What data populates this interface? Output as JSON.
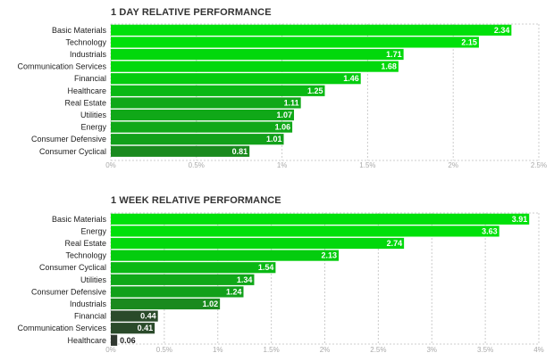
{
  "chart_data": [
    {
      "type": "bar",
      "orientation": "horizontal",
      "title": "1 DAY RELATIVE PERFORMANCE",
      "categories": [
        "Basic Materials",
        "Technology",
        "Industrials",
        "Communication Services",
        "Financial",
        "Healthcare",
        "Real Estate",
        "Utilities",
        "Energy",
        "Consumer Defensive",
        "Consumer Cyclical"
      ],
      "values": [
        2.34,
        2.15,
        1.71,
        1.68,
        1.46,
        1.25,
        1.11,
        1.07,
        1.06,
        1.01,
        0.81
      ],
      "value_labels": [
        "2.34",
        "2.15",
        "1.71",
        "1.68",
        "1.46",
        "1.25",
        "1.11",
        "1.07",
        "1.06",
        "1.01",
        "0.81"
      ],
      "ticks": [
        0,
        0.5,
        1,
        1.5,
        2,
        2.5
      ],
      "tick_labels": [
        "0%",
        "0.5%",
        "1%",
        "1.5%",
        "2%",
        "2.5%"
      ],
      "xlim": [
        0,
        2.5
      ],
      "grid": "dashed vertical",
      "bar_colors": [
        "#00e00a",
        "#00e00a",
        "#02d80c",
        "#02d80c",
        "#04cc0e",
        "#0ab814",
        "#10a818",
        "#10a818",
        "#10a818",
        "#12a01a",
        "#1a8a1e"
      ]
    },
    {
      "type": "bar",
      "orientation": "horizontal",
      "title": "1 WEEK RELATIVE PERFORMANCE",
      "categories": [
        "Basic Materials",
        "Energy",
        "Real Estate",
        "Technology",
        "Consumer Cyclical",
        "Utilities",
        "Consumer Defensive",
        "Industrials",
        "Financial",
        "Communication Services",
        "Healthcare"
      ],
      "values": [
        3.91,
        3.63,
        2.74,
        2.13,
        1.54,
        1.34,
        1.24,
        1.02,
        0.44,
        0.41,
        0.06
      ],
      "value_labels": [
        "3.91",
        "3.63",
        "2.74",
        "2.13",
        "1.54",
        "1.34",
        "1.24",
        "1.02",
        "0.44",
        "0.41",
        "0.06"
      ],
      "ticks": [
        0,
        0.5,
        1,
        1.5,
        2,
        2.5,
        3,
        3.5,
        4
      ],
      "tick_labels": [
        "0%",
        "0.5%",
        "1%",
        "1.5%",
        "2%",
        "2.5%",
        "3%",
        "3.5%",
        "4%"
      ],
      "xlim": [
        0,
        4
      ],
      "grid": "dashed vertical",
      "bar_colors": [
        "#00e00a",
        "#00e00a",
        "#02d80c",
        "#04cc0e",
        "#0ab814",
        "#10a818",
        "#12a01a",
        "#1a8a1e",
        "#2a4a2a",
        "#2a4a2a",
        "#303830"
      ]
    }
  ]
}
